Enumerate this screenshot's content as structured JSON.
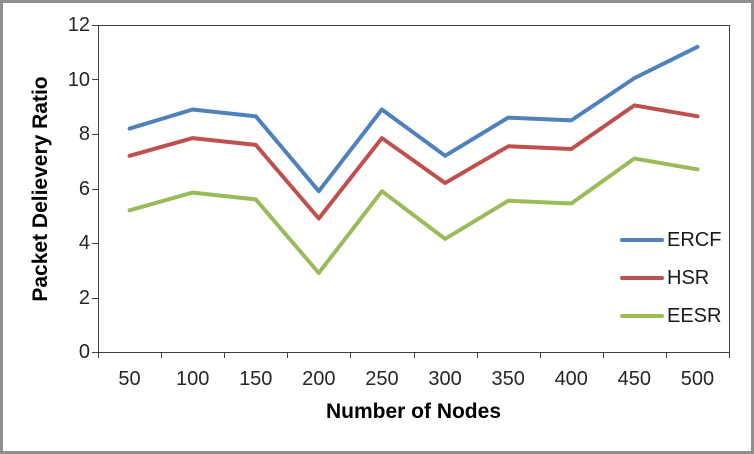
{
  "chart_data": {
    "type": "line",
    "title": "",
    "xlabel": "Number of Nodes",
    "ylabel": "Packet Delievery Ratio",
    "categories": [
      50,
      100,
      150,
      200,
      250,
      300,
      350,
      400,
      450,
      500
    ],
    "yticks": [
      0,
      2,
      4,
      6,
      8,
      10,
      12
    ],
    "ylim": [
      0,
      12
    ],
    "grid": false,
    "legend_position": "inside-right",
    "series": [
      {
        "name": "ERCF",
        "color": "#4F81BD",
        "values": [
          8.2,
          8.9,
          8.65,
          5.9,
          8.9,
          7.2,
          8.6,
          8.5,
          10.05,
          11.2
        ]
      },
      {
        "name": "HSR",
        "color": "#C0504D",
        "values": [
          7.2,
          7.85,
          7.6,
          4.9,
          7.85,
          6.2,
          7.55,
          7.45,
          9.05,
          8.65
        ]
      },
      {
        "name": "EESR",
        "color": "#9BBB59",
        "values": [
          5.2,
          5.85,
          5.6,
          2.9,
          5.9,
          4.15,
          5.55,
          5.45,
          7.1,
          6.7
        ]
      }
    ]
  },
  "colors": {
    "axis": "#404040",
    "tick_label": "#262626",
    "frame_border": "#8f8f8f",
    "background": "#ffffff"
  }
}
